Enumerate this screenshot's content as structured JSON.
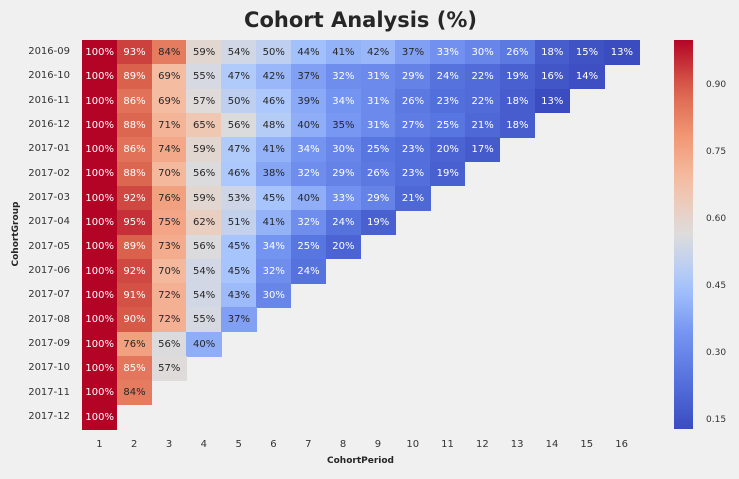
{
  "chart_data": {
    "type": "heatmap",
    "title": "Cohort Analysis (%)",
    "xlabel": "CohortPeriod",
    "ylabel": "CohortGroup",
    "x": [
      "1",
      "2",
      "3",
      "4",
      "5",
      "6",
      "7",
      "8",
      "9",
      "10",
      "11",
      "12",
      "13",
      "14",
      "15",
      "16"
    ],
    "y": [
      "2016-09",
      "2016-10",
      "2016-11",
      "2016-12",
      "2017-01",
      "2017-02",
      "2017-03",
      "2017-04",
      "2017-05",
      "2017-06",
      "2017-07",
      "2017-08",
      "2017-09",
      "2017-10",
      "2017-11",
      "2017-12"
    ],
    "values": [
      [
        100,
        93,
        84,
        59,
        54,
        50,
        44,
        41,
        42,
        37,
        33,
        30,
        26,
        18,
        15,
        13
      ],
      [
        100,
        89,
        69,
        55,
        47,
        42,
        37,
        32,
        31,
        29,
        24,
        22,
        19,
        16,
        14
      ],
      [
        100,
        86,
        69,
        57,
        50,
        46,
        39,
        34,
        31,
        26,
        23,
        22,
        18,
        13
      ],
      [
        100,
        88,
        71,
        65,
        56,
        48,
        40,
        35,
        31,
        27,
        25,
        21,
        18
      ],
      [
        100,
        86,
        74,
        59,
        47,
        41,
        34,
        30,
        25,
        23,
        20,
        17
      ],
      [
        100,
        88,
        70,
        56,
        46,
        38,
        32,
        29,
        26,
        23,
        19
      ],
      [
        100,
        92,
        76,
        59,
        53,
        45,
        40,
        33,
        29,
        21
      ],
      [
        100,
        95,
        75,
        62,
        51,
        41,
        32,
        24,
        19
      ],
      [
        100,
        89,
        73,
        56,
        45,
        34,
        25,
        20
      ],
      [
        100,
        92,
        70,
        54,
        45,
        32,
        24
      ],
      [
        100,
        91,
        72,
        54,
        43,
        30
      ],
      [
        100,
        90,
        72,
        55,
        37
      ],
      [
        100,
        76,
        56,
        40
      ],
      [
        100,
        85,
        57
      ],
      [
        100,
        84
      ],
      [
        100
      ]
    ],
    "value_format": "percent",
    "colormap": "coolwarm",
    "vmin": 0.13,
    "vmax": 1.0,
    "colorbar": {
      "ticks": [
        0.15,
        0.3,
        0.45,
        0.6,
        0.75,
        0.9
      ]
    },
    "grid": false
  }
}
